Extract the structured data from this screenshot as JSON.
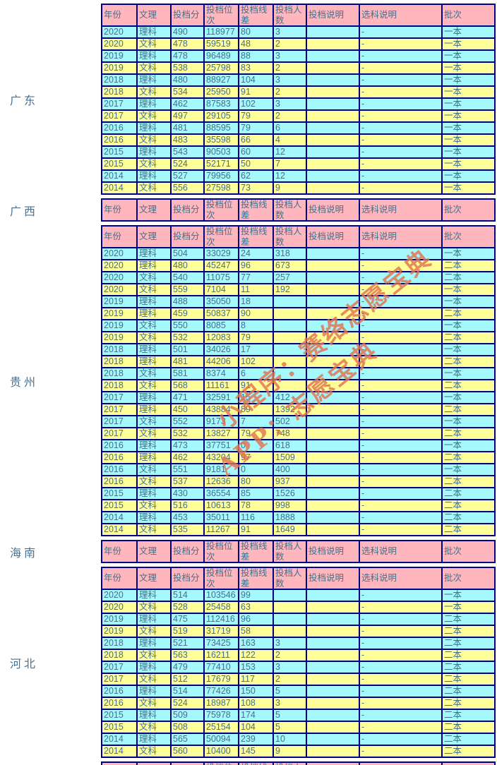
{
  "columns": [
    "年份",
    "文理",
    "投档分",
    "投档位次",
    "投档线差",
    "投档人数",
    "投档说明",
    "选科说明",
    "批次"
  ],
  "colors": {
    "header_bg": "#ffb6bc",
    "row_cyan": "#a5f8fc",
    "row_yellow": "#ffff99",
    "border": "#000080",
    "text": "#44708c",
    "watermark": "#e2734e"
  },
  "watermark": {
    "line1": "小程序：赛络志愿宝典",
    "line2": "APP：志愿宝典"
  },
  "sections": [
    {
      "province": "广东",
      "rows": [
        [
          "2020",
          "理科",
          "490",
          "118977",
          "80",
          "3",
          "",
          "-",
          "一本"
        ],
        [
          "2020",
          "文科",
          "478",
          "59519",
          "48",
          "2",
          "",
          "-",
          "一本"
        ],
        [
          "2019",
          "理科",
          "478",
          "96489",
          "88",
          "3",
          "",
          "-",
          "一本"
        ],
        [
          "2019",
          "文科",
          "538",
          "25798",
          "83",
          "2",
          "",
          "-",
          "一本"
        ],
        [
          "2018",
          "理科",
          "480",
          "88927",
          "104",
          "3",
          "",
          "-",
          "一本"
        ],
        [
          "2018",
          "文科",
          "534",
          "25950",
          "91",
          "2",
          "",
          "-",
          "一本"
        ],
        [
          "2017",
          "理科",
          "462",
          "87583",
          "102",
          "3",
          "",
          "-",
          "一本"
        ],
        [
          "2017",
          "文科",
          "497",
          "29105",
          "79",
          "2",
          "",
          "-",
          "一本"
        ],
        [
          "2016",
          "理科",
          "481",
          "88595",
          "79",
          "6",
          "",
          "-",
          "一本"
        ],
        [
          "2016",
          "文科",
          "483",
          "35598",
          "66",
          "4",
          "",
          "-",
          "一本"
        ],
        [
          "2015",
          "理科",
          "543",
          "90503",
          "60",
          "12",
          "",
          "-",
          "一本"
        ],
        [
          "2015",
          "文科",
          "524",
          "52171",
          "50",
          "7",
          "",
          "-",
          "一本"
        ],
        [
          "2014",
          "理科",
          "527",
          "79956",
          "62",
          "12",
          "",
          "-",
          "一本"
        ],
        [
          "2014",
          "文科",
          "556",
          "27598",
          "73",
          "9",
          "",
          "-",
          "一本"
        ]
      ]
    },
    {
      "province": "广西",
      "rows": []
    },
    {
      "province": "贵州",
      "rows": [
        [
          "2020",
          "理科",
          "504",
          "33029",
          "24",
          "318",
          "",
          "-",
          "一本"
        ],
        [
          "2020",
          "理科",
          "480",
          "45247",
          "96",
          "673",
          "",
          "-",
          "二本"
        ],
        [
          "2020",
          "文科",
          "540",
          "11075",
          "77",
          "257",
          "",
          "-",
          "二本"
        ],
        [
          "2020",
          "文科",
          "559",
          "7104",
          "11",
          "192",
          "",
          "-",
          "一本"
        ],
        [
          "2019",
          "理科",
          "488",
          "35050",
          "18",
          "",
          "",
          "-",
          "一本"
        ],
        [
          "2019",
          "理科",
          "459",
          "50837",
          "90",
          "",
          "",
          "-",
          "二本"
        ],
        [
          "2019",
          "文科",
          "550",
          "8085",
          "8",
          "",
          "",
          "-",
          "一本"
        ],
        [
          "2019",
          "文科",
          "532",
          "12083",
          "79",
          "",
          "",
          "-",
          "二本"
        ],
        [
          "2018",
          "理科",
          "501",
          "34026",
          "17",
          "",
          "",
          "-",
          "一本"
        ],
        [
          "2018",
          "理科",
          "481",
          "44206",
          "102",
          "",
          "",
          "-",
          "二本"
        ],
        [
          "2018",
          "文科",
          "581",
          "8374",
          "6",
          "",
          "",
          "-",
          "一本"
        ],
        [
          "2018",
          "文科",
          "568",
          "11161",
          "91",
          "",
          "",
          "-",
          "二本"
        ],
        [
          "2017",
          "理科",
          "471",
          "32591",
          "15",
          "412",
          "",
          "-",
          "一本"
        ],
        [
          "2017",
          "理科",
          "450",
          "43884",
          "89",
          "1392",
          "",
          "-",
          "二本"
        ],
        [
          "2017",
          "文科",
          "552",
          "9173",
          "7",
          "502",
          "",
          "-",
          "一本"
        ],
        [
          "2017",
          "文科",
          "532",
          "13827",
          "79",
          "748",
          "",
          "-",
          "二本"
        ],
        [
          "2016",
          "理科",
          "473",
          "37751",
          "0",
          "618",
          "",
          "-",
          "一本"
        ],
        [
          "2016",
          "理科",
          "462",
          "43204",
          "97",
          "1509",
          "",
          "-",
          "二本"
        ],
        [
          "2016",
          "文科",
          "551",
          "9181",
          "0",
          "400",
          "",
          "-",
          "一本"
        ],
        [
          "2016",
          "文科",
          "537",
          "12636",
          "80",
          "937",
          "",
          "-",
          "二本"
        ],
        [
          "2015",
          "理科",
          "430",
          "36554",
          "85",
          "1526",
          "",
          "-",
          "二本"
        ],
        [
          "2015",
          "文科",
          "516",
          "10613",
          "78",
          "998",
          "",
          "-",
          "二本"
        ],
        [
          "2014",
          "理科",
          "453",
          "35011",
          "116",
          "1888",
          "",
          "-",
          "二本"
        ],
        [
          "2014",
          "文科",
          "535",
          "11267",
          "91",
          "1649",
          "",
          "-",
          "二本"
        ]
      ]
    },
    {
      "province": "海南",
      "rows": []
    },
    {
      "province": "河北",
      "rows": [
        [
          "2020",
          "理科",
          "514",
          "103546",
          "99",
          "",
          "",
          "-",
          "一本"
        ],
        [
          "2020",
          "文科",
          "528",
          "25458",
          "63",
          "",
          "",
          "-",
          "一本"
        ],
        [
          "2019",
          "理科",
          "475",
          "112416",
          "96",
          "",
          "",
          "-",
          "二本"
        ],
        [
          "2019",
          "文科",
          "519",
          "31719",
          "58",
          "",
          "",
          "-",
          "二本"
        ],
        [
          "2018",
          "理科",
          "521",
          "73425",
          "163",
          "3",
          "",
          "-",
          "二本"
        ],
        [
          "2018",
          "文科",
          "563",
          "16211",
          "122",
          "2",
          "",
          "-",
          "二本"
        ],
        [
          "2017",
          "理科",
          "479",
          "77410",
          "153",
          "3",
          "",
          "-",
          "二本"
        ],
        [
          "2017",
          "文科",
          "512",
          "17679",
          "117",
          "2",
          "",
          "-",
          "二本"
        ],
        [
          "2016",
          "理科",
          "514",
          "77426",
          "150",
          "5",
          "",
          "-",
          "二本"
        ],
        [
          "2016",
          "文科",
          "524",
          "18987",
          "108",
          "3",
          "",
          "-",
          "二本"
        ],
        [
          "2015",
          "理科",
          "509",
          "75978",
          "174",
          "5",
          "",
          "-",
          "二本"
        ],
        [
          "2015",
          "文科",
          "508",
          "25154",
          "104",
          "5",
          "",
          "-",
          "二本"
        ],
        [
          "2014",
          "理科",
          "565",
          "50094",
          "239",
          "10",
          "",
          "-",
          "二本"
        ],
        [
          "2014",
          "文科",
          "560",
          "10400",
          "145",
          "9",
          "",
          "-",
          "二本"
        ]
      ]
    },
    {
      "province": "",
      "partial": true,
      "rows": []
    }
  ]
}
